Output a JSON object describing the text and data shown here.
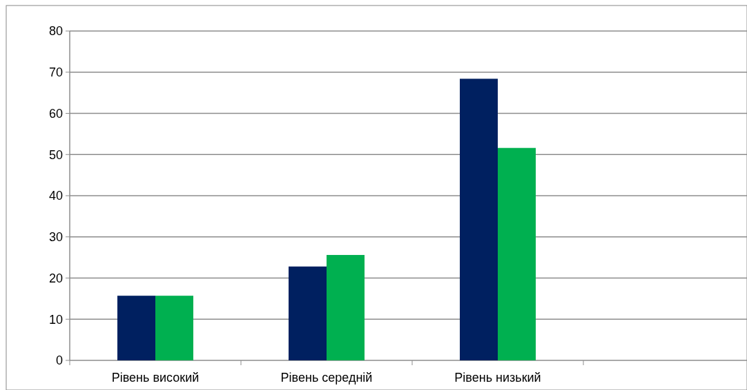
{
  "chart_data": {
    "type": "bar",
    "categories": [
      "Рівень високий",
      "Рівень середній",
      "Рівень низький",
      null
    ],
    "series": [
      {
        "color": "#002060",
        "values": [
          15.7,
          22.8,
          68.4,
          null
        ]
      },
      {
        "color": "#00b050",
        "values": [
          15.7,
          25.6,
          51.6,
          null
        ]
      }
    ],
    "ylim": [
      0,
      80
    ],
    "yticks": [
      0,
      10,
      20,
      30,
      40,
      50,
      60,
      70,
      80
    ],
    "grid": "y"
  }
}
